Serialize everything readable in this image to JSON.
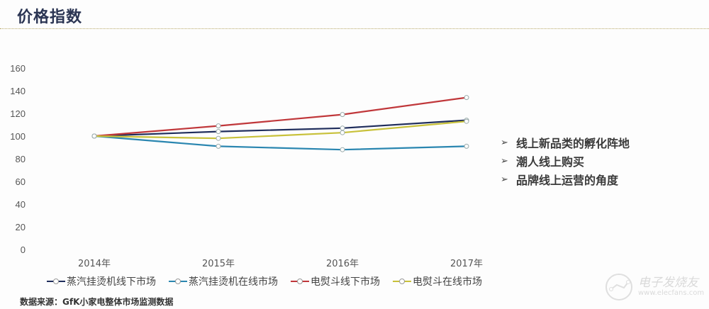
{
  "header": {
    "title": "价格指数"
  },
  "chart_data": {
    "type": "line",
    "title": "价格指数",
    "xlabel": "",
    "ylabel": "",
    "x": [
      "2014年",
      "2015年",
      "2016年",
      "2017年"
    ],
    "yticks": [
      0,
      20,
      40,
      60,
      80,
      100,
      120,
      140,
      160
    ],
    "ylim": [
      0,
      160
    ],
    "grid": false,
    "legend_position": "bottom",
    "series": [
      {
        "name": "蒸汽挂烫机线下市场",
        "color": "#1f2d5c",
        "values": [
          100,
          104,
          107,
          114
        ]
      },
      {
        "name": "蒸汽挂烫机在线市场",
        "color": "#2a86b0",
        "values": [
          100,
          91,
          88,
          91
        ]
      },
      {
        "name": "电熨斗线下市场",
        "color": "#c0373a",
        "values": [
          100,
          109,
          119,
          134
        ]
      },
      {
        "name": "电熨斗在线市场",
        "color": "#c8c13a",
        "values": [
          100,
          98,
          103,
          113
        ]
      }
    ]
  },
  "bullets": [
    {
      "icon": "arrow-bullet-icon",
      "text": "线上新品类的孵化阵地"
    },
    {
      "icon": "arrow-bullet-icon",
      "text": "潮人线上购买"
    },
    {
      "icon": "arrow-bullet-icon",
      "text": "品牌线上运营的角度"
    }
  ],
  "source": "数据来源：GfK小家电整体市场监测数据",
  "watermark": {
    "name": "电子发烧友",
    "url": "www.elecfans.com"
  }
}
